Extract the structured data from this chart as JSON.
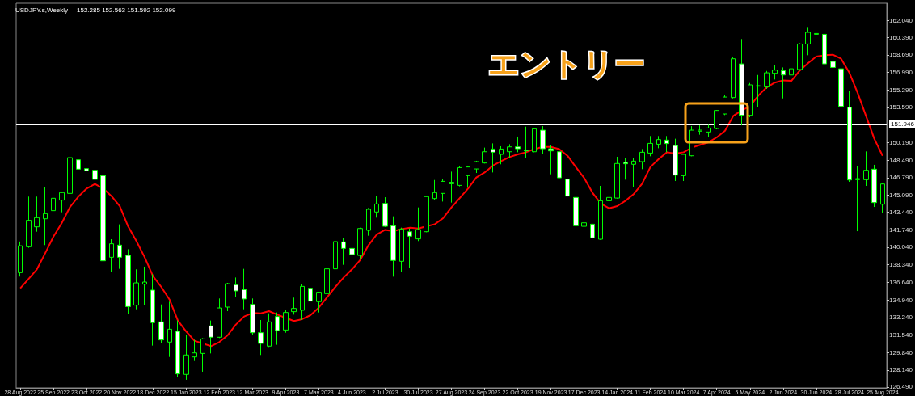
{
  "chart_data": {
    "type": "candlestick",
    "title": "USDJPY.s,Weekly",
    "subtitle": "152.285 152.563 151.592 152.099",
    "annotations": [
      "エントリー"
    ],
    "categories": [
      "28 Aug 2022",
      null,
      null,
      null,
      "25 Sep 2022",
      null,
      null,
      null,
      "23 Oct 2022",
      null,
      null,
      null,
      "20 Nov 2022",
      null,
      null,
      null,
      "18 Dec 2022",
      null,
      null,
      null,
      "15 Jan 2023",
      null,
      null,
      null,
      "12 Feb 2023",
      null,
      null,
      null,
      "12 Mar 2023",
      null,
      null,
      null,
      "9 Apr 2023",
      null,
      null,
      null,
      "7 May 2023",
      null,
      null,
      null,
      "4 Jun 2023",
      null,
      null,
      null,
      "2 Jul 2023",
      null,
      null,
      null,
      "30 Jul 2023",
      null,
      null,
      null,
      "27 Aug 2023",
      null,
      null,
      null,
      "24 Sep 2023",
      null,
      null,
      null,
      "22 Oct 2023",
      null,
      null,
      null,
      "19 Nov 2023",
      null,
      null,
      null,
      "17 Dec 2023",
      null,
      null,
      null,
      "14 Jan 2024",
      null,
      null,
      null,
      "11 Feb 2024",
      null,
      null,
      null,
      "10 Mar 2024",
      null,
      null,
      null,
      "7 Apr 2024",
      null,
      null,
      null,
      "5 May 2024",
      null,
      null,
      null,
      "2 Jun 2024",
      null,
      null,
      null,
      "30 Jun 2024",
      null,
      null,
      null,
      "28 Jul 2024",
      null,
      null,
      null,
      "25 Aug 2024"
    ],
    "ohlc": [
      [
        137.58,
        140.6,
        137.2,
        140.19
      ],
      [
        140.09,
        144.95,
        139.99,
        142.65
      ],
      [
        142.02,
        144.95,
        141.55,
        142.91
      ],
      [
        142.8,
        145.91,
        140.25,
        143.3
      ],
      [
        143.59,
        145.0,
        143.12,
        144.79
      ],
      [
        144.61,
        145.39,
        143.43,
        145.34
      ],
      [
        145.26,
        148.86,
        145.26,
        148.73
      ],
      [
        148.52,
        151.91,
        146.12,
        147.61
      ],
      [
        147.66,
        149.7,
        145.08,
        147.45
      ],
      [
        147.5,
        148.86,
        145.62,
        146.62
      ],
      [
        146.98,
        147.61,
        138.34,
        138.73
      ],
      [
        139.07,
        140.82,
        137.64,
        140.38
      ],
      [
        140.25,
        142.26,
        137.95,
        139.07
      ],
      [
        139.25,
        139.85,
        133.59,
        134.29
      ],
      [
        134.43,
        137.9,
        134.03,
        136.59
      ],
      [
        136.46,
        138.16,
        134.43,
        136.67
      ],
      [
        135.89,
        137.43,
        130.51,
        132.73
      ],
      [
        132.81,
        134.5,
        130.72,
        131.06
      ],
      [
        130.85,
        134.77,
        129.41,
        132.1
      ],
      [
        131.89,
        132.94,
        127.46,
        127.77
      ],
      [
        127.72,
        131.55,
        127.2,
        129.6
      ],
      [
        129.41,
        131.06,
        129.02,
        129.8
      ],
      [
        129.75,
        131.24,
        127.98,
        131.16
      ],
      [
        132.42,
        132.94,
        129.75,
        131.32
      ],
      [
        131.32,
        135.08,
        131.24,
        134.16
      ],
      [
        134.24,
        136.59,
        133.85,
        136.51
      ],
      [
        136.41,
        137.11,
        135.21,
        135.81
      ],
      [
        135.94,
        137.95,
        134.03,
        135.03
      ],
      [
        134.5,
        135.08,
        131.5,
        131.76
      ],
      [
        131.76,
        132.99,
        129.6,
        130.72
      ],
      [
        130.46,
        133.64,
        130.38,
        132.81
      ],
      [
        133.33,
        133.72,
        130.59,
        131.97
      ],
      [
        132.02,
        133.98,
        131.76,
        133.72
      ],
      [
        133.8,
        135.16,
        133.51,
        134.11
      ],
      [
        133.93,
        136.51,
        132.99,
        136.25
      ],
      [
        136.07,
        137.77,
        133.46,
        134.82
      ],
      [
        134.77,
        135.73,
        133.72,
        135.68
      ],
      [
        135.55,
        138.73,
        135.5,
        137.95
      ],
      [
        137.95,
        140.69,
        137.43,
        140.59
      ],
      [
        140.56,
        140.95,
        138.34,
        139.93
      ],
      [
        139.93,
        140.43,
        138.73,
        139.33
      ],
      [
        139.25,
        141.94,
        138.94,
        141.86
      ],
      [
        141.68,
        143.85,
        141.16,
        143.72
      ],
      [
        143.46,
        145.02,
        142.91,
        144.24
      ],
      [
        144.29,
        144.89,
        142.0,
        142.07
      ],
      [
        142.13,
        143.04,
        137.19,
        138.76
      ],
      [
        138.68,
        141.94,
        137.64,
        141.81
      ],
      [
        141.55,
        141.86,
        138.08,
        141.11
      ],
      [
        140.85,
        143.9,
        140.64,
        141.76
      ],
      [
        141.55,
        145.0,
        141.5,
        144.95
      ],
      [
        144.76,
        146.56,
        144.63,
        145.34
      ],
      [
        145.26,
        146.69,
        144.47,
        146.43
      ],
      [
        146.33,
        147.37,
        144.37,
        146.2
      ],
      [
        146.04,
        147.87,
        145.94,
        147.76
      ],
      [
        146.98,
        147.95,
        145.81,
        147.82
      ],
      [
        147.63,
        148.42,
        147.24,
        148.34
      ],
      [
        148.21,
        149.7,
        148.16,
        149.3
      ],
      [
        149.56,
        150.11,
        147.29,
        149.25
      ],
      [
        149.04,
        149.83,
        148.08,
        149.56
      ],
      [
        149.3,
        150.03,
        148.73,
        149.77
      ],
      [
        149.77,
        150.77,
        149.25,
        149.59
      ],
      [
        149.46,
        151.73,
        148.73,
        149.38
      ],
      [
        149.3,
        151.57,
        149.25,
        151.52
      ],
      [
        151.39,
        151.78,
        149.12,
        149.59
      ],
      [
        149.59,
        149.9,
        147.11,
        149.38
      ],
      [
        149.3,
        149.43,
        146.59,
        146.77
      ],
      [
        146.64,
        147.48,
        141.55,
        145.0
      ],
      [
        144.87,
        146.59,
        140.9,
        142.13
      ],
      [
        142.07,
        144.95,
        141.86,
        142.41
      ],
      [
        142.28,
        142.86,
        140.19,
        140.95
      ],
      [
        140.82,
        145.99,
        140.77,
        144.55
      ],
      [
        144.55,
        146.38,
        143.38,
        144.87
      ],
      [
        144.81,
        148.81,
        144.76,
        148.16
      ],
      [
        148.26,
        148.73,
        146.59,
        148.13
      ],
      [
        148.08,
        148.73,
        145.86,
        148.39
      ],
      [
        148.34,
        149.56,
        147.61,
        149.25
      ],
      [
        149.17,
        150.82,
        148.86,
        150.11
      ],
      [
        150.03,
        150.82,
        149.64,
        150.48
      ],
      [
        150.43,
        150.82,
        149.25,
        150.09
      ],
      [
        149.9,
        150.56,
        146.46,
        147.03
      ],
      [
        146.98,
        149.12,
        146.46,
        149.04
      ],
      [
        148.91,
        151.78,
        148.86,
        151.39
      ],
      [
        151.29,
        151.86,
        150.95,
        151.39
      ],
      [
        151.21,
        151.91,
        150.74,
        151.6
      ],
      [
        151.55,
        153.35,
        151.47,
        153.3
      ],
      [
        152.96,
        154.79,
        152.85,
        154.6
      ],
      [
        154.55,
        158.44,
        154.47,
        158.31
      ],
      [
        157.81,
        160.22,
        151.86,
        152.83
      ],
      [
        152.83,
        155.96,
        152.64,
        155.78
      ],
      [
        155.65,
        156.74,
        153.61,
        155.7
      ],
      [
        155.59,
        157.13,
        155.39,
        156.95
      ],
      [
        156.9,
        157.66,
        156.3,
        157.21
      ],
      [
        157.16,
        157.47,
        154.47,
        156.74
      ],
      [
        156.74,
        158.21,
        155.65,
        157.34
      ],
      [
        157.27,
        159.82,
        157.16,
        159.74
      ],
      [
        159.74,
        161.31,
        158.65,
        160.87
      ],
      [
        160.68,
        161.96,
        160.22,
        160.76
      ],
      [
        160.68,
        161.78,
        157.27,
        157.81
      ],
      [
        158.05,
        158.78,
        155.33,
        157.47
      ],
      [
        157.34,
        157.6,
        151.94,
        153.69
      ],
      [
        153.61,
        155.2,
        146.38,
        146.56
      ],
      [
        146.59,
        147.87,
        141.6,
        146.69
      ],
      [
        146.59,
        149.33,
        145.99,
        147.5
      ],
      [
        147.61,
        148.03,
        143.95,
        144.37
      ],
      [
        144.21,
        146.25,
        143.33,
        146.17
      ]
    ],
    "series": [
      {
        "type": "line",
        "color": "#ff0000",
        "values": [
          136.07,
          136.98,
          137.9,
          139.46,
          141.08,
          142.39,
          143.95,
          144.94,
          145.73,
          146.17,
          145.73,
          145.0,
          144.03,
          142.07,
          140.64,
          139.07,
          137.24,
          136.2,
          134.97,
          132.94,
          131.89,
          130.98,
          130.72,
          130.46,
          130.85,
          131.5,
          132.55,
          133.33,
          133.67,
          133.64,
          133.85,
          133.51,
          133.2,
          132.89,
          133.07,
          133.46,
          134.19,
          135.2,
          136.2,
          137.11,
          137.9,
          138.81,
          140.25,
          141.29,
          141.73,
          141.6,
          141.81,
          141.94,
          141.86,
          142.07,
          142.28,
          142.86,
          143.9,
          144.81,
          145.73,
          146.8,
          147.29,
          147.95,
          148.39,
          148.78,
          149.04,
          149.25,
          149.56,
          149.77,
          149.77,
          149.56,
          148.91,
          147.82,
          146.77,
          145.34,
          144.29,
          143.82,
          144.03,
          144.55,
          145.21,
          146.2,
          147.82,
          148.6,
          149.25,
          149.12,
          149.25,
          149.7,
          149.96,
          150.22,
          150.69,
          151.34,
          152.78,
          153.3,
          153.69,
          154.73,
          155.52,
          156.0,
          156.22,
          156.17,
          157.16,
          157.87,
          158.52,
          158.65,
          158.7,
          158.31,
          156.95,
          154.99,
          152.78,
          150.56,
          148.91
        ]
      }
    ],
    "ylim": [
      126.41,
      163.69
    ],
    "yticks": [
      {
        "value": 126.49,
        "label": "126.490"
      },
      {
        "value": 128.14,
        "label": "128.140"
      },
      {
        "value": 129.84,
        "label": "129.840"
      },
      {
        "value": 131.54,
        "label": "131.540"
      },
      {
        "value": 133.24,
        "label": "133.240"
      },
      {
        "value": 134.94,
        "label": "134.940"
      },
      {
        "value": 136.64,
        "label": "136.640"
      },
      {
        "value": 138.34,
        "label": "138.340"
      },
      {
        "value": 140.04,
        "label": "140.040"
      },
      {
        "value": 141.74,
        "label": "141.740"
      },
      {
        "value": 143.44,
        "label": "143.440"
      },
      {
        "value": 145.09,
        "label": "145.090"
      },
      {
        "value": 146.79,
        "label": "146.790"
      },
      {
        "value": 148.49,
        "label": "148.490"
      },
      {
        "value": 150.19,
        "label": "150.190"
      },
      {
        "value": 153.59,
        "label": "153.590"
      },
      {
        "value": 155.29,
        "label": "155.290"
      },
      {
        "value": 156.99,
        "label": "156.990"
      },
      {
        "value": 158.69,
        "label": "158.690"
      },
      {
        "value": 160.39,
        "label": "160.390"
      },
      {
        "value": 162.04,
        "label": "162.040"
      }
    ],
    "ref_lines": [
      {
        "axis": "y",
        "value": 151.946,
        "label": "151.946",
        "color": "#ffffff"
      }
    ],
    "marker": "none",
    "grid": false
  }
}
